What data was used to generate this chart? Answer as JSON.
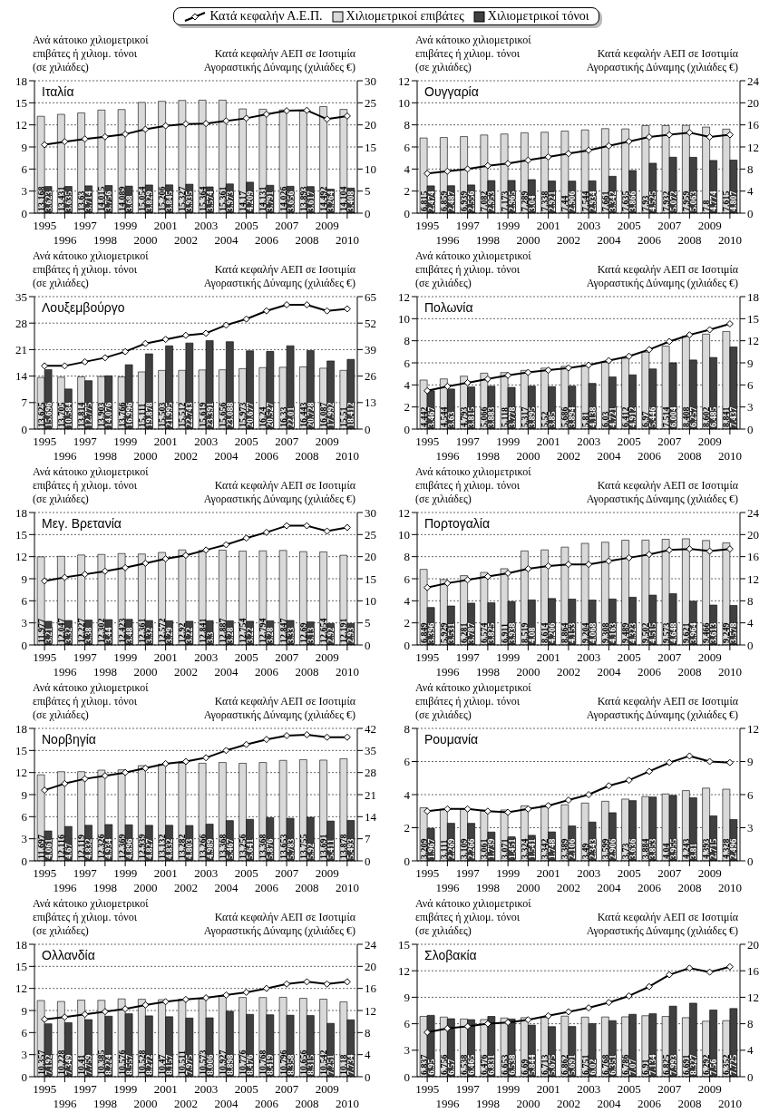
{
  "chart_data": [
    {
      "type": "bar",
      "title": "Ιταλία",
      "ylabel": "Ανά κάτοικο χιλιομετρικοί επιβάτες ή χιλιομ. τόνοι (σε χιλιάδες)",
      "y2label": "Κατά κεφαλήν ΑΕΠ σε Ισοτιμία Αγοραστικής Δύναμης (χιλιάδες €)",
      "categories": [
        "1995",
        "1996",
        "1997",
        "1998",
        "1999",
        "2000",
        "2001",
        "2002",
        "2003",
        "2004",
        "2005",
        "2006",
        "2007",
        "2008",
        "2009",
        "2010"
      ],
      "ylim": [
        0,
        18
      ],
      "yticks": [
        0,
        3,
        6,
        9,
        12,
        15,
        18
      ],
      "y2lim": [
        0,
        30
      ],
      "y2ticks": [
        0,
        5,
        10,
        15,
        20,
        25,
        30
      ],
      "grid": "y",
      "legend": "top",
      "marker": "diamond",
      "line_style": "solid",
      "series": [
        {
          "name": "Κατά κεφαλήν Α.Ε.Π.",
          "type": "line",
          "axis": "y2",
          "color": "#000000",
          "values": [
            15.5,
            16.2,
            16.8,
            17.3,
            17.9,
            19.0,
            19.8,
            20.2,
            20.3,
            20.9,
            21.5,
            22.4,
            23.2,
            23.3,
            21.3,
            22.0
          ]
        },
        {
          "name": "Χιλιομετρικοί επιβάτες",
          "color": "#d9d9d9",
          "values": [
            13.168,
            13.431,
            13.63,
            14.015,
            14.089,
            15.054,
            15.206,
            15.327,
            15.364,
            15.361,
            14.17,
            14.131,
            14.026,
            13.893,
            14.492,
            14.104
          ],
          "value_labels": [
            "13.168",
            "13.431",
            "13.63",
            "14.015",
            "14.089",
            "15.054",
            "15.206",
            "15.327",
            "15.364",
            "15.361",
            "14.17",
            "14.131",
            "14.026",
            "13.893",
            "14.492",
            "14.104"
          ]
        },
        {
          "name": "Χιλιομετρικοί τόνοι",
          "color": "#404040",
          "values": [
            3.623,
            3.635,
            3.714,
            3.756,
            3.68,
            3.829,
            3.845,
            3.935,
            3.574,
            3.973,
            4.209,
            3.791,
            3.656,
            3.617,
            3.264,
            3.408
          ],
          "value_labels": [
            "3.623",
            "3.635",
            "3.714",
            "3.756",
            "3.68",
            "3.829",
            "3.845",
            "3.935",
            "3.574",
            "3.973",
            "4.209",
            "3.791",
            "3.656",
            "3.617",
            "3.264",
            "3.408"
          ]
        }
      ]
    },
    {
      "type": "bar",
      "title": "Ουγγαρία",
      "ylabel": "Ανά κάτοικο χιλιομετρικοί επιβάτες ή χιλιομ. τόνοι (σε χιλιάδες)",
      "y2label": "Κατά κεφαλήν ΑΕΠ σε Ισοτιμία Αγοραστικής Δύναμης (χιλιάδες €)",
      "categories": [
        "1995",
        "1996",
        "1997",
        "1998",
        "1999",
        "2000",
        "2001",
        "2002",
        "2003",
        "2004",
        "2005",
        "2006",
        "2007",
        "2008",
        "2009",
        "2010"
      ],
      "ylim": [
        0,
        12
      ],
      "yticks": [
        0,
        2,
        4,
        6,
        8,
        10,
        12
      ],
      "y2lim": [
        0,
        24
      ],
      "y2ticks": [
        0,
        4,
        8,
        12,
        16,
        20,
        24
      ],
      "grid": "y",
      "marker": "diamond",
      "line_style": "solid",
      "series": [
        {
          "type": "line",
          "axis": "y2",
          "color": "#000000",
          "values": [
            7.2,
            7.6,
            8.0,
            8.6,
            9.0,
            9.6,
            10.2,
            10.8,
            11.4,
            12.2,
            13.0,
            13.8,
            14.2,
            14.6,
            13.8,
            14.2
          ]
        },
        {
          "color": "#d9d9d9",
          "values": [
            6.815,
            6.859,
            6.939,
            7.082,
            7.173,
            7.289,
            7.338,
            7.44,
            7.544,
            7.661,
            7.635,
            7.93,
            7.932,
            7.959,
            7.8,
            7.615
          ],
          "value_labels": [
            "6.815",
            "6.859",
            "6.939",
            "7.082",
            "7.173",
            "7.289",
            "7.338",
            "7.44",
            "7.544",
            "7.661",
            "7.635",
            "7.93",
            "7.932",
            "7.959",
            "7.8",
            "7.615"
          ]
        },
        {
          "color": "#404040",
          "values": [
            2.474,
            2.487,
            2.556,
            2.953,
            2.965,
            3.04,
            2.921,
            2.906,
            2.934,
            3.342,
            3.866,
            4.525,
            5.072,
            5.063,
            4.774,
            4.807
          ],
          "value_labels": [
            "2.474",
            "2.487",
            "2.556",
            "2.953",
            "2.965",
            "3.04",
            "2.921",
            "2.906",
            "2.934",
            "3.342",
            "3.866",
            "4.525",
            "5.072",
            "5.063",
            "4.774",
            "4.807"
          ]
        }
      ]
    },
    {
      "type": "bar",
      "title": "Λουξεμβούργο",
      "ylabel": "Ανά κάτοικο χιλιομετρικοί επιβάτες ή χιλιομ. τόνοι (σε χιλιάδες)",
      "y2label": "Κατά κεφαλήν ΑΕΠ σε Ισοτιμία Αγοραστικής Δύναμης (χιλιάδες €)",
      "categories": [
        "1995",
        "1996",
        "1997",
        "1998",
        "1999",
        "2000",
        "2001",
        "2002",
        "2003",
        "2004",
        "2005",
        "2006",
        "2007",
        "2008",
        "2009",
        "2010"
      ],
      "ylim": [
        0,
        35
      ],
      "yticks": [
        0,
        7,
        14,
        21,
        28,
        35
      ],
      "y2lim": [
        0,
        65
      ],
      "y2ticks": [
        0,
        13,
        26,
        39,
        52,
        65
      ],
      "grid": "y",
      "marker": "diamond",
      "line_style": "solid",
      "series": [
        {
          "type": "line",
          "axis": "y2",
          "color": "#000000",
          "values": [
            31,
            31,
            33,
            35,
            38,
            42,
            44,
            46,
            47,
            51,
            54,
            58,
            61,
            61,
            58,
            59
          ]
        },
        {
          "color": "#d9d9d9",
          "values": [
            13.625,
            13.705,
            13.814,
            13.903,
            13.766,
            15.111,
            15.503,
            15.512,
            15.619,
            15.656,
            15.973,
            16.24,
            16.33,
            16.443,
            16.087,
            15.51
          ],
          "value_labels": [
            "13.625",
            "13.705",
            "13.814",
            "13.903",
            "13.766",
            "15.111",
            "15.503",
            "15.512",
            "15.619",
            "15.656",
            "15.973",
            "16.24",
            "16.33",
            "16.443",
            "16.087",
            "15.51"
          ]
        },
        {
          "color": "#404040",
          "values": [
            15.696,
            10.584,
            12.775,
            14.076,
            16.996,
            19.878,
            21.995,
            22.743,
            23.391,
            23.088,
            20.677,
            20.527,
            22.01,
            20.728,
            17.992,
            18.412
          ],
          "value_labels": [
            "15.696",
            "10.584",
            "12.775",
            "14.076",
            "16.996",
            "19.878",
            "21.995",
            "22.743",
            "23.391",
            "23.088",
            "20.677",
            "20.527",
            "22.01",
            "20.728",
            "17.992",
            "18.412"
          ]
        }
      ]
    },
    {
      "type": "bar",
      "title": "Πολωνία",
      "ylabel": "Ανά κάτοικο χιλιομετρικοί επιβάτες ή χιλιομ. τόνοι (σε χιλιάδες)",
      "y2label": "Κατά κεφαλήν ΑΕΠ σε Ισοτιμία Αγοραστικής Δύναμης (χιλιάδες €)",
      "categories": [
        "1995",
        "1996",
        "1997",
        "1998",
        "1999",
        "2000",
        "2001",
        "2002",
        "2003",
        "2004",
        "2005",
        "2006",
        "2007",
        "2008",
        "2009",
        "2010"
      ],
      "ylim": [
        0,
        12
      ],
      "yticks": [
        0,
        2,
        4,
        6,
        8,
        10,
        12
      ],
      "y2lim": [
        0,
        18
      ],
      "y2ticks": [
        0,
        3,
        6,
        9,
        12,
        15,
        18
      ],
      "grid": "y",
      "marker": "diamond",
      "line_style": "solid",
      "series": [
        {
          "type": "line",
          "axis": "y2",
          "color": "#000000",
          "values": [
            5.2,
            5.8,
            6.3,
            6.8,
            7.3,
            7.7,
            8.0,
            8.3,
            8.7,
            9.3,
            9.9,
            10.8,
            11.9,
            12.8,
            13.5,
            14.3
          ]
        },
        {
          "color": "#d9d9d9",
          "values": [
            4.442,
            4.544,
            4.793,
            5.066,
            5.118,
            5.317,
            5.52,
            5.686,
            5.81,
            6.03,
            6.412,
            6.97,
            7.514,
            8.408,
            8.602,
            8.841
          ],
          "value_labels": [
            "4.442",
            "4.544",
            "4.793",
            "5.066",
            "5.118",
            "5.317",
            "5.52",
            "5.686",
            "5.81",
            "6.03",
            "6.412",
            "6.97",
            "7.514",
            "8.408",
            "8.602",
            "8.841"
          ]
        },
        {
          "color": "#404040",
          "values": [
            3.467,
            3.63,
            3.815,
            3.883,
            3.778,
            3.895,
            3.85,
            3.894,
            4.138,
            4.721,
            4.912,
            5.446,
            6.004,
            6.257,
            6.485,
            7.437
          ],
          "value_labels": [
            "3.467",
            "3.63",
            "3.815",
            "3.883",
            "3.778",
            "3.895",
            "3.85",
            "3.894",
            "4.138",
            "4.721",
            "4.912",
            "5.446",
            "6.004",
            "6.257",
            "6.485",
            "7.437"
          ]
        }
      ]
    },
    {
      "type": "bar",
      "title": "Μεγ. Βρετανία",
      "ylabel": "Ανά κάτοικο χιλιομετρικοί επιβάτες ή χιλιομ. τόνοι (σε χιλιάδες)",
      "y2label": "Κατά κεφαλήν ΑΕΠ σε Ισοτιμία Αγοραστικής Δύναμης (χιλιάδες €)",
      "categories": [
        "1995",
        "1996",
        "1997",
        "1998",
        "1999",
        "2000",
        "2001",
        "2002",
        "2003",
        "2004",
        "2005",
        "2006",
        "2007",
        "2008",
        "2009",
        "2010"
      ],
      "ylim": [
        0,
        18
      ],
      "yticks": [
        0,
        3,
        6,
        9,
        12,
        15,
        18
      ],
      "y2lim": [
        0,
        30
      ],
      "y2ticks": [
        0,
        5,
        10,
        15,
        20,
        25,
        30
      ],
      "grid": "y",
      "marker": "diamond",
      "line_style": "solid",
      "series": [
        {
          "type": "line",
          "axis": "y2",
          "color": "#000000",
          "values": [
            14.5,
            15.3,
            16.0,
            16.7,
            17.5,
            18.5,
            19.5,
            20.3,
            21.5,
            22.7,
            24.2,
            25.5,
            27.0,
            27.0,
            25.8,
            26.6
          ]
        },
        {
          "color": "#d9d9d9",
          "values": [
            11.977,
            12.047,
            12.227,
            12.302,
            12.423,
            12.361,
            12.572,
            12.92,
            12.841,
            12.887,
            12.754,
            12.794,
            12.847,
            12.69,
            12.654,
            12.191
          ],
          "value_labels": [
            "11.977",
            "12.047",
            "12.227",
            "12.302",
            "12.423",
            "12.361",
            "12.572",
            "12.92",
            "12.841",
            "12.887",
            "12.754",
            "12.794",
            "12.847",
            "12.69",
            "12.654",
            "12.191"
          ]
        },
        {
          "color": "#404040",
          "values": [
            3.21,
            3.32,
            3.38,
            3.44,
            3.48,
            3.32,
            3.29,
            3.22,
            3.3,
            3.28,
            3.22,
            3.28,
            3.33,
            3.13,
            2.92,
            2.93
          ],
          "value_labels": [
            "3.21",
            "3.32",
            "3.38",
            "3.44",
            "3.48",
            "3.32",
            "3.29",
            "3.22",
            "3.3",
            "3.28",
            "3.22",
            "3.28",
            "3.33",
            "3.13",
            "2.92",
            "2.93"
          ]
        }
      ]
    },
    {
      "type": "bar",
      "title": "Πορτογαλία",
      "ylabel": "Ανά κάτοικο χιλιομετρικοί επιβάτες ή χιλιομ. τόνοι (σε χιλιάδες)",
      "y2label": "Κατά κεφαλήν ΑΕΠ σε Ισοτιμία Αγοραστικής Δύναμης (χιλιάδες €)",
      "categories": [
        "1995",
        "1996",
        "1997",
        "1998",
        "1999",
        "2000",
        "2001",
        "2002",
        "2003",
        "2004",
        "2005",
        "2006",
        "2007",
        "2008",
        "2009",
        "2010"
      ],
      "ylim": [
        0,
        12
      ],
      "yticks": [
        0,
        2,
        4,
        6,
        8,
        10,
        12
      ],
      "y2lim": [
        0,
        24
      ],
      "y2ticks": [
        0,
        4,
        8,
        12,
        16,
        20,
        24
      ],
      "grid": "y",
      "marker": "diamond",
      "line_style": "solid",
      "series": [
        {
          "type": "line",
          "axis": "y2",
          "color": "#000000",
          "values": [
            10.4,
            11.2,
            11.8,
            12.4,
            13.0,
            13.8,
            14.3,
            14.6,
            14.6,
            15.2,
            15.8,
            16.4,
            17.2,
            17.4,
            17.0,
            17.4
          ]
        },
        {
          "color": "#d9d9d9",
          "values": [
            6.849,
            5.929,
            6.281,
            6.574,
            6.911,
            8.519,
            8.614,
            8.864,
            9.204,
            9.308,
            9.489,
            9.502,
            9.573,
            9.621,
            9.466,
            9.249
          ],
          "value_labels": [
            "6.849",
            "5.929",
            "6.281",
            "6.574",
            "6.911",
            "8.519",
            "8.614",
            "8.864",
            "9.204",
            "9.308",
            "9.489",
            "9.502",
            "9.573",
            "9.621",
            "9.466",
            "9.249"
          ]
        },
        {
          "color": "#404040",
          "values": [
            3.396,
            3.531,
            3.787,
            3.825,
            3.938,
            4.08,
            4.206,
            4.153,
            4.068,
            4.163,
            4.323,
            4.515,
            4.648,
            3.964,
            3.613,
            3.578
          ],
          "value_labels": [
            "3.396",
            "3.531",
            "3.787",
            "3.825",
            "3.938",
            "4.08",
            "4.206",
            "4.153",
            "4.068",
            "4.163",
            "4.323",
            "4.515",
            "4.648",
            "3.964",
            "3.613",
            "3.578"
          ]
        }
      ]
    },
    {
      "type": "bar",
      "title": "Νορβηγία",
      "ylabel": "Ανά κάτοικο χιλιομετρικοί επιβάτες ή χιλιομ. τόνοι (σε χιλιάδες)",
      "y2label": "Κατά κεφαλήν ΑΕΠ σε Ισοτιμία Αγοραστικής Δύναμης (χιλιάδες €)",
      "categories": [
        "1995",
        "1996",
        "1997",
        "1998",
        "1999",
        "2000",
        "2001",
        "2002",
        "2003",
        "2004",
        "2005",
        "2006",
        "2007",
        "2008",
        "2009",
        "2010"
      ],
      "ylim": [
        0,
        18
      ],
      "yticks": [
        0,
        3,
        6,
        9,
        12,
        15,
        18
      ],
      "y2lim": [
        0,
        42
      ],
      "y2ticks": [
        0,
        7,
        14,
        21,
        28,
        35,
        42
      ],
      "grid": "y",
      "marker": "diamond",
      "line_style": "solid",
      "series": [
        {
          "type": "line",
          "axis": "y2",
          "color": "#000000",
          "values": [
            22.4,
            24.5,
            26,
            27,
            28,
            29.4,
            30.8,
            31.5,
            32.7,
            35,
            36.9,
            38.5,
            39.7,
            40,
            39.2,
            39.2
          ]
        },
        {
          "color": "#d9d9d9",
          "values": [
            11.697,
            12.116,
            12.119,
            12.326,
            12.369,
            12.939,
            13.132,
            13.282,
            13.266,
            13.368,
            13.256,
            13.368,
            13.653,
            13.755,
            13.691,
            13.878
          ],
          "value_labels": [
            "11.697",
            "12.116",
            "12.119",
            "12.326",
            "12.369",
            "12.939",
            "13.132",
            "13.282",
            "13.266",
            "13.368",
            "13.256",
            "13.368",
            "13.653",
            "13.755",
            "13.691",
            "13.878"
          ]
        },
        {
          "color": "#404040",
          "values": [
            4.061,
            4.67,
            4.832,
            4.934,
            4.896,
            4.827,
            4.832,
            4.803,
            4.989,
            5.467,
            5.641,
            5.876,
            5.783,
            5.92,
            5.411,
            5.493
          ],
          "value_labels": [
            "4.061",
            "4.67",
            "4.832",
            "4.934",
            "4.896",
            "4.827",
            "4.832",
            "4.803",
            "4.989",
            "5.467",
            "5.641",
            "5.876",
            "5.783",
            "5.92",
            "5.411",
            "5.493"
          ]
        }
      ]
    },
    {
      "type": "bar",
      "title": "Ρουμανία",
      "ylabel": "Ανά κάτοικο χιλιομετρικοί επιβάτες ή χιλιομ. τόνοι (σε χιλιάδες)",
      "y2label": "Κατά κεφαλήν ΑΕΠ σε Ισοτιμία Αγοραστικής Δύναμης (χιλιάδες €)",
      "categories": [
        "1995",
        "1996",
        "1997",
        "1998",
        "1999",
        "2000",
        "2001",
        "2002",
        "2003",
        "2004",
        "2005",
        "2006",
        "2007",
        "2008",
        "2009",
        "2010"
      ],
      "ylim": [
        0,
        8
      ],
      "yticks": [
        0,
        2,
        4,
        6,
        8
      ],
      "y2lim": [
        0,
        12
      ],
      "y2ticks": [
        0,
        3,
        6,
        9,
        12
      ],
      "grid": "y",
      "marker": "diamond",
      "line_style": "solid",
      "series": [
        {
          "type": "line",
          "axis": "y2",
          "color": "#000000",
          "values": [
            4.5,
            4.7,
            4.7,
            4.5,
            4.4,
            4.7,
            5.0,
            5.5,
            6.0,
            6.8,
            7.3,
            8.1,
            8.9,
            9.5,
            9.0,
            8.9
          ]
        },
        {
          "color": "#d9d9d9",
          "values": [
            3.209,
            3.111,
            3.109,
            3.061,
            3.071,
            3.324,
            3.342,
            3.389,
            3.49,
            3.599,
            3.73,
            3.884,
            4.04,
            4.243,
            4.393,
            4.328
          ],
          "value_labels": [
            "3.209",
            "3.111",
            "3.109",
            "3.061",
            "3.071",
            "3.324",
            "3.342",
            "3.389",
            "3.49",
            "3.599",
            "3.73",
            "3.884",
            "4.04",
            "4.243",
            "4.393",
            "4.328"
          ]
        },
        {
          "color": "#404040",
          "values": [
            1.967,
            2.269,
            2.266,
            1.739,
            1.451,
            1.541,
            1.748,
            2.106,
            2.343,
            2.906,
            3.636,
            3.853,
            3.955,
            3.81,
            2.715,
            2.496
          ],
          "value_labels": [
            "1.967",
            "2.269",
            "2.266",
            "1.739",
            "1.451",
            "1.541",
            "1.748",
            "2.106",
            "2.343",
            "2.906",
            "3.636",
            "3.853",
            "3.955",
            "3.81",
            "2.715",
            "2.496"
          ]
        }
      ]
    },
    {
      "type": "bar",
      "title": "Ολλανδία",
      "ylabel": "Ανά κάτοικο χιλιομετρικοί επιβάτες ή χιλιομ. τόνοι (σε χιλιάδες)",
      "y2label": "Κατά κεφαλήν ΑΕΠ σε Ισοτιμία Αγοραστικής Δύναμης (χιλιάδες €)",
      "categories": [
        "1995",
        "1996",
        "1997",
        "1998",
        "1999",
        "2000",
        "2001",
        "2002",
        "2003",
        "2004",
        "2005",
        "2006",
        "2007",
        "2008",
        "2009",
        "2010"
      ],
      "ylim": [
        0,
        18
      ],
      "yticks": [
        0,
        3,
        6,
        9,
        12,
        15,
        18
      ],
      "y2lim": [
        0,
        24
      ],
      "y2ticks": [
        0,
        4,
        8,
        12,
        16,
        20,
        24
      ],
      "grid": "y",
      "marker": "diamond",
      "line_style": "solid",
      "series": [
        {
          "type": "line",
          "axis": "y2",
          "color": "#000000",
          "values": [
            10.4,
            10.8,
            11.3,
            11.8,
            12.3,
            13.0,
            13.6,
            14.0,
            14.3,
            14.8,
            15.3,
            16.0,
            16.8,
            17.2,
            16.8,
            17.2
          ]
        },
        {
          "color": "#d9d9d9",
          "values": [
            10.357,
            10.228,
            10.41,
            10.385,
            10.576,
            10.528,
            10.47,
            10.511,
            10.573,
            10.927,
            10.776,
            10.768,
            10.796,
            10.656,
            10.542,
            10.18
          ],
          "value_labels": [
            "10.357",
            "10.228",
            "10.41",
            "10.385",
            "10.576",
            "10.528",
            "10.47",
            "10.511",
            "10.573",
            "10.927",
            "10.776",
            "10.768",
            "10.796",
            "10.656",
            "10.542",
            "10.18"
          ]
        },
        {
          "color": "#404040",
          "values": [
            7.192,
            7.349,
            7.759,
            8.224,
            8.557,
            8.272,
            8.157,
            7.975,
            8.006,
            8.898,
            8.476,
            8.419,
            8.358,
            8.315,
            7.251,
            7.734
          ],
          "value_labels": [
            "7.192",
            "7.349",
            "7.759",
            "8.224",
            "8.557",
            "8.272",
            "8.157",
            "7.975",
            "8.006",
            "8.898",
            "8.476",
            "8.419",
            "8.358",
            "8.315",
            "7.251",
            "7.734"
          ]
        }
      ]
    },
    {
      "type": "bar",
      "title": "Σλοβακία",
      "ylabel": "Ανά κάτοικο χιλιομετρικοί επιβάτες ή χιλιομ. τόνοι (σε χιλιάδες)",
      "y2label": "Κατά κεφαλήν ΑΕΠ σε Ισοτιμία Αγοραστικής Δύναμης (χιλιάδες €)",
      "categories": [
        "1995",
        "1996",
        "1997",
        "1998",
        "1999",
        "2000",
        "2001",
        "2002",
        "2003",
        "2004",
        "2005",
        "2006",
        "2007",
        "2008",
        "2009",
        "2010"
      ],
      "ylim": [
        0,
        15
      ],
      "yticks": [
        0,
        3,
        6,
        9,
        12,
        15
      ],
      "y2lim": [
        0,
        20
      ],
      "y2ticks": [
        0,
        4,
        8,
        12,
        16,
        20
      ],
      "grid": "y",
      "marker": "diamond",
      "line_style": "solid",
      "series": [
        {
          "type": "line",
          "axis": "y2",
          "color": "#000000",
          "values": [
            6.7,
            7.3,
            7.6,
            8.0,
            8.2,
            8.6,
            9.2,
            9.8,
            10.4,
            11.2,
            12.2,
            13.6,
            15.4,
            16.4,
            15.8,
            16.6
          ]
        },
        {
          "color": "#d9d9d9",
          "values": [
            6.837,
            6.756,
            6.538,
            6.476,
            6.653,
            6.69,
            6.713,
            6.862,
            6.751,
            6.768,
            6.786,
            6.91,
            6.825,
            6.691,
            6.292,
            6.352
          ],
          "value_labels": [
            "6.837",
            "6.756",
            "6.538",
            "6.476",
            "6.653",
            "6.69",
            "6.713",
            "6.862",
            "6.751",
            "6.768",
            "6.786",
            "6.91",
            "6.825",
            "6.691",
            "6.292",
            "6.352"
          ]
        },
        {
          "color": "#404040",
          "values": [
            6.95,
            6.57,
            6.465,
            6.831,
            6.538,
            5.844,
            5.675,
            5.691,
            6.02,
            6.351,
            7.07,
            7.134,
            7.993,
            8.327,
            7.56,
            7.725
          ],
          "value_labels": [
            "6.95",
            "6.57",
            "6.465",
            "6.831",
            "6.538",
            "5.844",
            "5.675",
            "5.691",
            "6.02",
            "6.351",
            "7.07",
            "7.134",
            "7.993",
            "8.327",
            "7.56",
            "7.725"
          ]
        }
      ]
    }
  ]
}
